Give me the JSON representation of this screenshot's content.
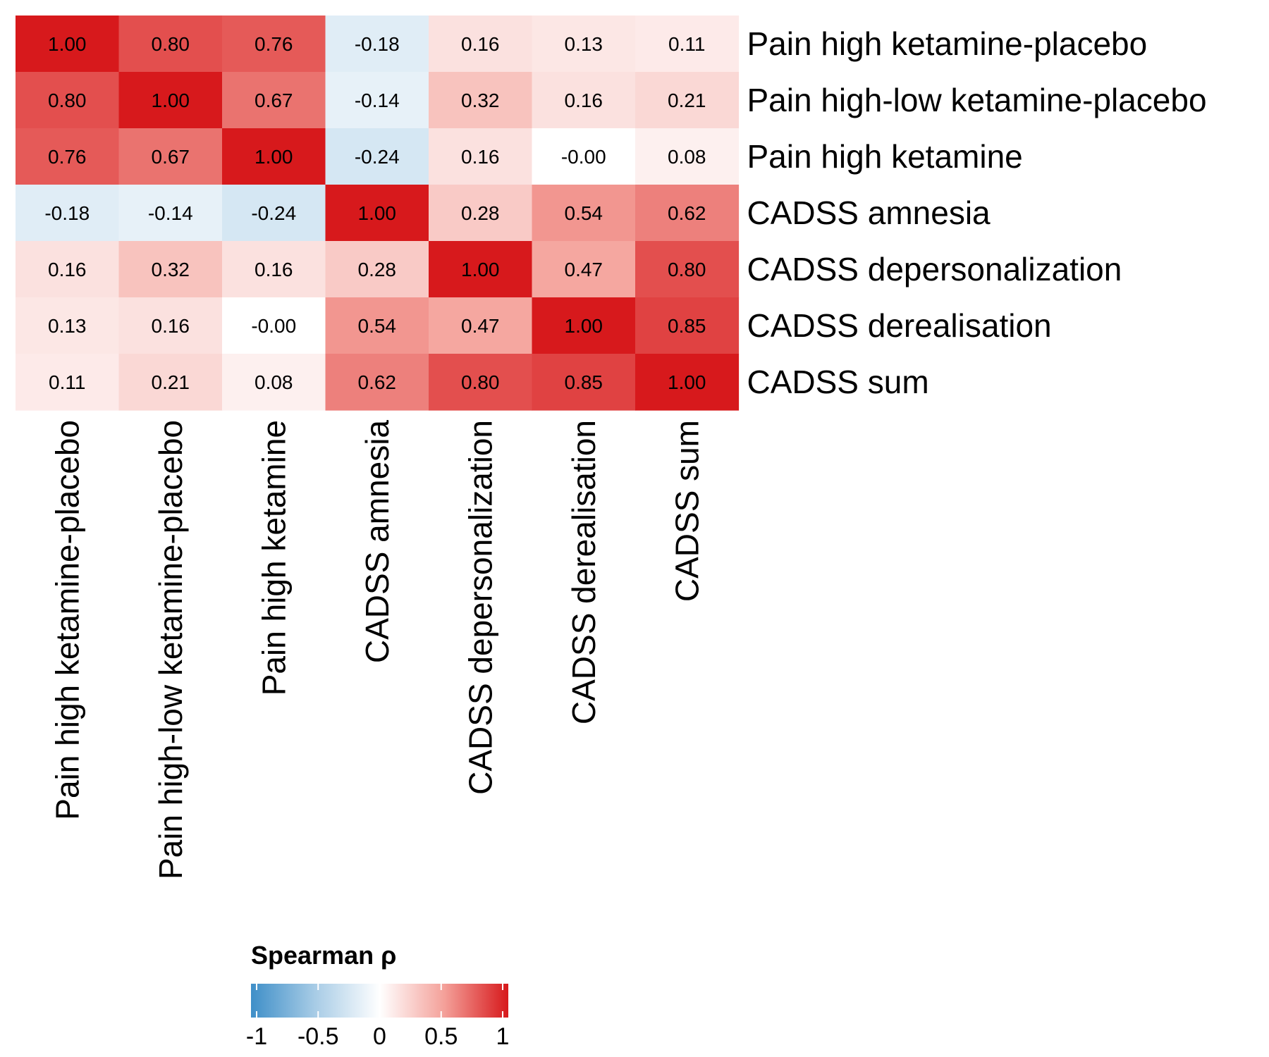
{
  "chart_data": {
    "type": "heatmap",
    "labels": [
      "Pain high ketamine-placebo",
      "Pain high-low ketamine-placebo",
      "Pain high ketamine",
      "CADSS amnesia",
      "CADSS depersonalization",
      "CADSS derealisation",
      "CADSS sum"
    ],
    "values": [
      [
        1.0,
        0.8,
        0.76,
        -0.18,
        0.16,
        0.13,
        0.11
      ],
      [
        0.8,
        1.0,
        0.67,
        -0.14,
        0.32,
        0.16,
        0.21
      ],
      [
        0.76,
        0.67,
        1.0,
        -0.24,
        0.16,
        -0.0,
        0.08
      ],
      [
        -0.18,
        -0.14,
        -0.24,
        1.0,
        0.28,
        0.54,
        0.62
      ],
      [
        0.16,
        0.32,
        0.16,
        0.28,
        1.0,
        0.47,
        0.8
      ],
      [
        0.13,
        0.16,
        -0.0,
        0.54,
        0.47,
        1.0,
        0.85
      ],
      [
        0.11,
        0.21,
        0.08,
        0.62,
        0.8,
        0.85,
        1.0
      ]
    ],
    "cell_labels": [
      [
        "1.00",
        "0.80",
        "0.76",
        "-0.18",
        "0.16",
        "0.13",
        "0.11"
      ],
      [
        "0.80",
        "1.00",
        "0.67",
        "-0.14",
        "0.32",
        "0.16",
        "0.21"
      ],
      [
        "0.76",
        "0.67",
        "1.00",
        "-0.24",
        "0.16",
        "-0.00",
        "0.08"
      ],
      [
        "-0.18",
        "-0.14",
        "-0.24",
        "1.00",
        "0.28",
        "0.54",
        "0.62"
      ],
      [
        "0.16",
        "0.32",
        "0.16",
        "0.28",
        "1.00",
        "0.47",
        "0.80"
      ],
      [
        "0.13",
        "0.16",
        "-0.00",
        "0.54",
        "0.47",
        "1.00",
        "0.85"
      ],
      [
        "0.11",
        "0.21",
        "0.08",
        "0.62",
        "0.80",
        "0.85",
        "1.00"
      ]
    ],
    "row_label_position": "right",
    "col_label_position": "bottom",
    "legend": {
      "title": "Spearman ρ",
      "position": "bottom",
      "range": [
        -1,
        1
      ],
      "ticks": [
        -1,
        -0.5,
        0,
        0.5,
        1
      ],
      "tick_labels": [
        "-1",
        "-0.5",
        "0",
        "0.5",
        "1"
      ]
    },
    "colors": {
      "low": "#2c7bb6",
      "mid": "#ffffff",
      "high": "#d7191c",
      "colorscale": [
        [
          -1,
          "#3f8fc8"
        ],
        [
          -0.5,
          "#a8cce6"
        ],
        [
          0,
          "#ffffff"
        ],
        [
          0.5,
          "#f4a19a"
        ],
        [
          1,
          "#d7191c"
        ]
      ]
    }
  }
}
